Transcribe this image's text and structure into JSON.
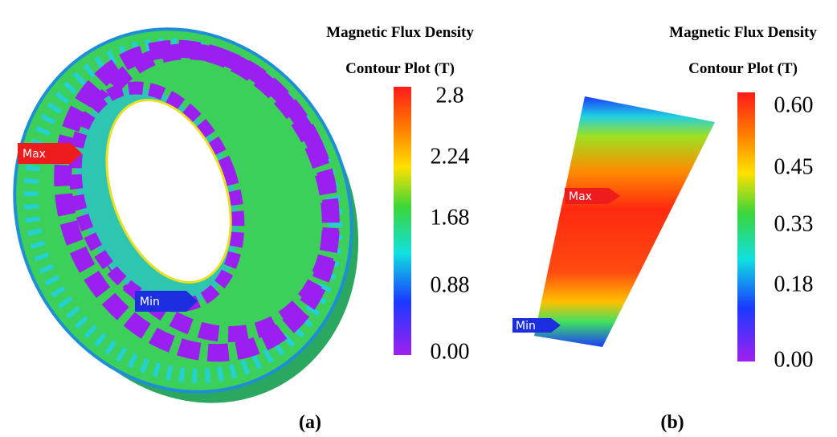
{
  "panels": [
    {
      "title_line1": "Magnetic Flux Density",
      "title_line2": "Contour Plot (T)",
      "scale_labels": [
        "2.8",
        "2.24",
        "1.68",
        "0.88",
        "0.00"
      ],
      "max_label": "Max",
      "min_label": "Min",
      "caption": "(a)"
    },
    {
      "title_line1": "Magnetic Flux Density",
      "title_line2": "Contour Plot (T)",
      "scale_labels": [
        "0.60",
        "0.45",
        "0.33",
        "0.18",
        "0.00"
      ],
      "max_label": "Max",
      "min_label": "Min",
      "caption": "(b)"
    }
  ]
}
